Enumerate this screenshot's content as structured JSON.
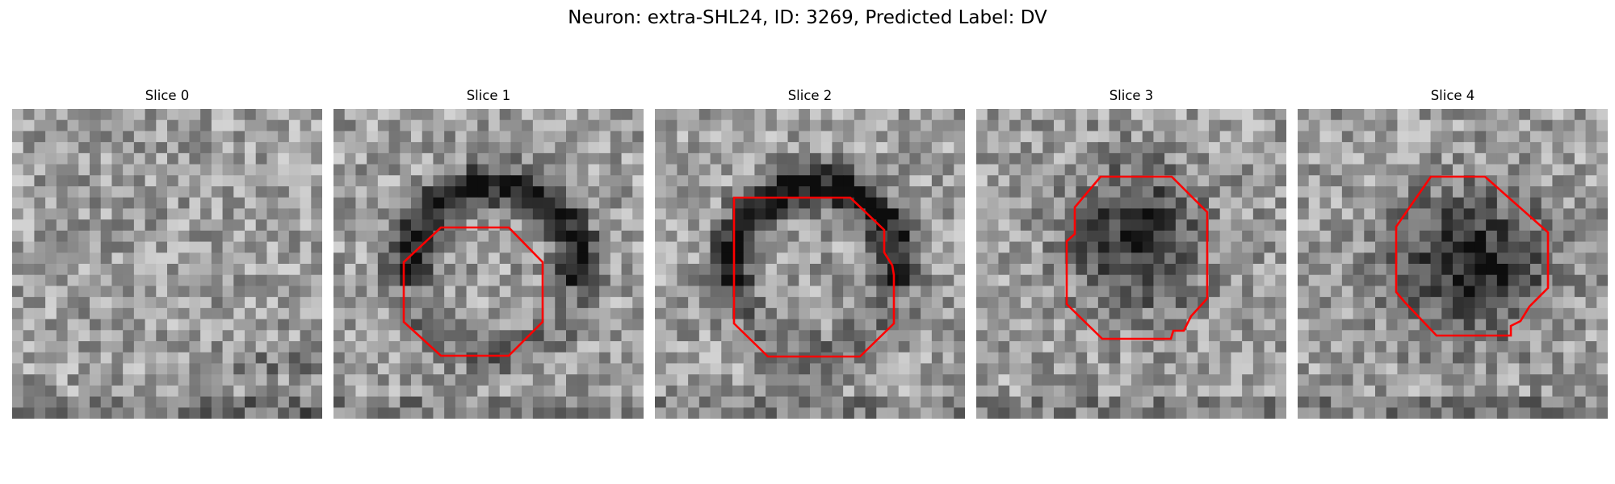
{
  "figure": {
    "title": "Neuron: extra-SHL24, ID: 3269, Predicted Label: DV"
  },
  "panels": [
    {
      "title": "Slice 0",
      "has_contour": false,
      "dark_blob": null
    },
    {
      "title": "Slice 1",
      "has_contour": true,
      "dark_blob": "ring-upper"
    },
    {
      "title": "Slice 2",
      "has_contour": true,
      "dark_blob": "ring-upper"
    },
    {
      "title": "Slice 3",
      "has_contour": true,
      "dark_blob": "filled-upper"
    },
    {
      "title": "Slice 4",
      "has_contour": true,
      "dark_blob": "filled-center"
    }
  ],
  "style": {
    "contour_color": "#ff0000",
    "colormap": "gray"
  }
}
